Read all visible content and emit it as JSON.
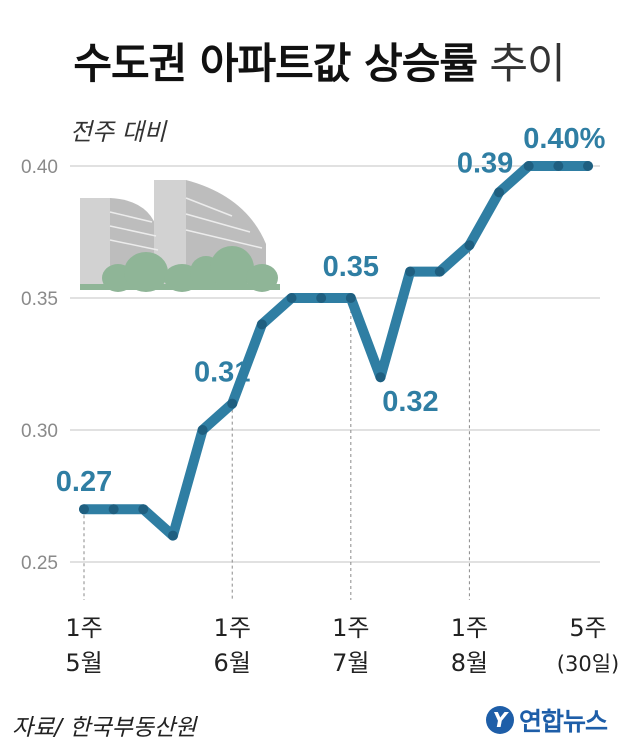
{
  "header": {
    "title_bold": "수도권 아파트값 상승률",
    "title_light": "추이",
    "unit": "전주 대비"
  },
  "footer": {
    "source": "자료/ 한국부동산원",
    "logo_text": "연합뉴스"
  },
  "colors": {
    "line": "#2f7ea3",
    "marker": "#1f5f80",
    "label": "#2f7ea3",
    "grid": "#cfcfcf",
    "tick": "#8a8a8a",
    "building": "#c9c9c9",
    "trees": "#8fb597"
  },
  "chart_data": {
    "type": "line",
    "title": "수도권 아파트값 상승률 추이",
    "ylabel": "전주 대비",
    "ylim": [
      0.25,
      0.4
    ],
    "yticks": [
      "0.25",
      "0.30",
      "0.35",
      "0.40"
    ],
    "grid": true,
    "series": [
      {
        "values": [
          0.27,
          0.27,
          0.27,
          0.26,
          0.3,
          0.31,
          0.34,
          0.35,
          0.35,
          0.35,
          0.32,
          0.36,
          0.36,
          0.37,
          0.39,
          0.4,
          0.4,
          0.4
        ]
      }
    ],
    "data_labels": [
      {
        "index": 0,
        "text": "0.27"
      },
      {
        "index": 5,
        "text": "0.31"
      },
      {
        "index": 9,
        "text": "0.35"
      },
      {
        "index": 10,
        "text": "0.32"
      },
      {
        "index": 14,
        "text": "0.39"
      },
      {
        "index": 16,
        "text": "0.40%"
      }
    ],
    "x_ticks": [
      {
        "index": 0,
        "week": "1주",
        "month": "5월",
        "guide": true
      },
      {
        "index": 5,
        "week": "1주",
        "month": "6월",
        "guide": true
      },
      {
        "index": 9,
        "week": "1주",
        "month": "7월",
        "guide": true
      },
      {
        "index": 13,
        "week": "1주",
        "month": "8월",
        "guide": true
      },
      {
        "index": 17,
        "week": "5주",
        "month": "(30일)",
        "guide": false
      }
    ]
  }
}
